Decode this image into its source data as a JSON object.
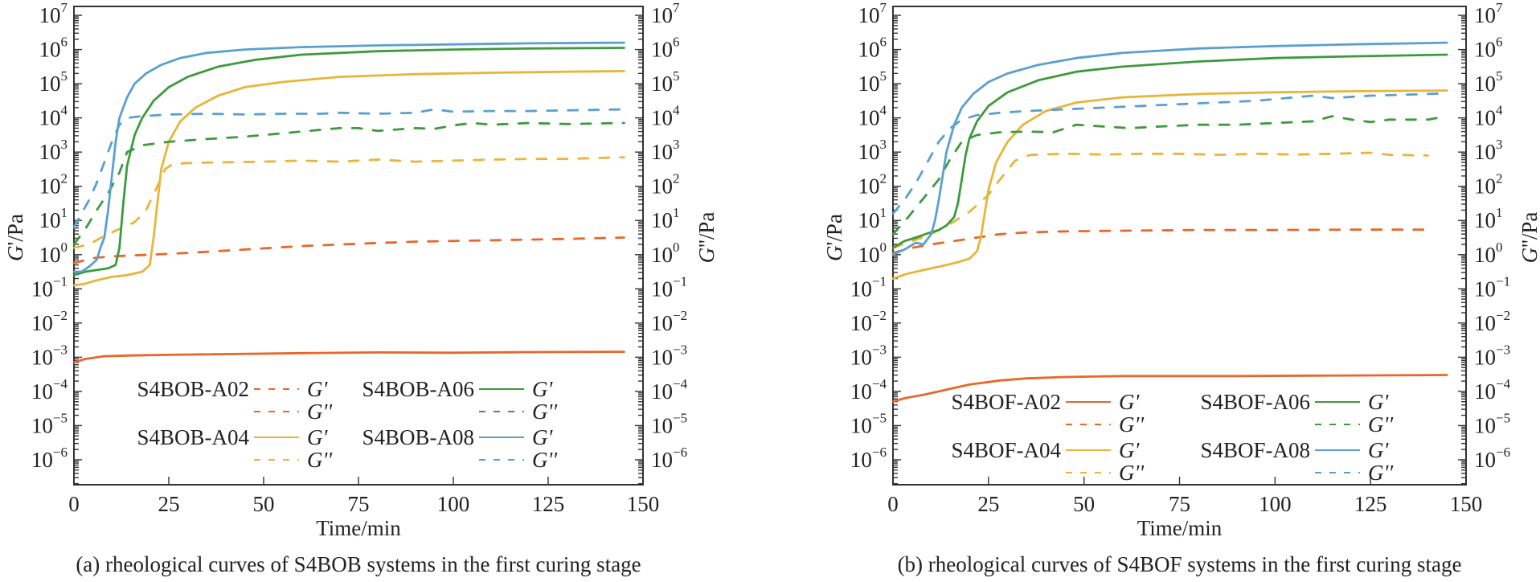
{
  "chart_data": [
    {
      "type": "line",
      "panel": "a",
      "caption": "(a) rheological curves of S4BOB systems in the first curing stage",
      "xlabel": "Time/min",
      "ylabel_left": "G'/Pa",
      "ylabel_right": "G''/Pa",
      "xlim": [
        0,
        150
      ],
      "ylim_log10": [
        -6.73,
        7.26
      ],
      "yscale": "log",
      "x_ticks": [
        0,
        25,
        50,
        75,
        100,
        125,
        150
      ],
      "y_ticks_exp": [
        7,
        6,
        5,
        4,
        3,
        2,
        1,
        0,
        -1,
        -2,
        -3,
        -4,
        -5,
        -6
      ],
      "grid": false,
      "legend_placement": "bottom-center",
      "legend": [
        {
          "sample": "S4BOB-A02",
          "Gp_label": "G'",
          "Gpp_label": "G''",
          "Gp_dashed": true
        },
        {
          "sample": "S4BOB-A04",
          "Gp_label": "G'",
          "Gpp_label": "G''",
          "Gp_dashed": false
        },
        {
          "sample": "S4BOB-A06",
          "Gp_label": "G'",
          "Gpp_label": "G''",
          "Gp_dashed": false
        },
        {
          "sample": "S4BOB-A08",
          "Gp_label": "G'",
          "Gpp_label": "G''",
          "Gp_dashed": false
        }
      ],
      "series": [
        {
          "name": "S4BOB-A02 G'",
          "color": "#e8672a",
          "dash": false,
          "x": [
            0,
            3,
            8,
            15,
            25,
            40,
            60,
            80,
            100,
            120,
            145
          ],
          "log10y": [
            -3.15,
            -3.05,
            -2.97,
            -2.95,
            -2.93,
            -2.91,
            -2.88,
            -2.86,
            -2.87,
            -2.85,
            -2.84
          ]
        },
        {
          "name": "S4BOB-A02 G''",
          "color": "#e8672a",
          "dash": true,
          "x": [
            0,
            5,
            10,
            20,
            30,
            45,
            60,
            75,
            90,
            110,
            130,
            145
          ],
          "log10y": [
            -0.25,
            -0.1,
            -0.05,
            0.0,
            0.05,
            0.15,
            0.25,
            0.32,
            0.38,
            0.42,
            0.46,
            0.5
          ]
        },
        {
          "name": "S4BOB-A04 G'",
          "color": "#e8b53a",
          "dash": false,
          "x": [
            0,
            3,
            6,
            10,
            14,
            18,
            20,
            21,
            22,
            23,
            25,
            28,
            32,
            38,
            45,
            55,
            70,
            90,
            110,
            130,
            145
          ],
          "log10y": [
            -0.9,
            -0.85,
            -0.75,
            -0.65,
            -0.6,
            -0.5,
            -0.3,
            0.5,
            1.5,
            2.5,
            3.3,
            3.9,
            4.3,
            4.65,
            4.9,
            5.05,
            5.2,
            5.28,
            5.32,
            5.35,
            5.37
          ]
        },
        {
          "name": "S4BOB-A04 G''",
          "color": "#e8b53a",
          "dash": true,
          "x": [
            0,
            4,
            8,
            12,
            16,
            19,
            22,
            24,
            26,
            30,
            40,
            50,
            60,
            70,
            80,
            90,
            100,
            110,
            120,
            130,
            145
          ],
          "log10y": [
            0.2,
            0.3,
            0.55,
            0.75,
            0.95,
            1.3,
            2.0,
            2.5,
            2.65,
            2.68,
            2.7,
            2.72,
            2.75,
            2.72,
            2.78,
            2.72,
            2.75,
            2.78,
            2.8,
            2.8,
            2.85
          ]
        },
        {
          "name": "S4BOB-A06 G'",
          "color": "#3d9a3d",
          "dash": false,
          "x": [
            0,
            3,
            6,
            9,
            11,
            12,
            13,
            14,
            16,
            18,
            21,
            25,
            30,
            38,
            48,
            60,
            80,
            100,
            120,
            145
          ],
          "log10y": [
            -0.6,
            -0.5,
            -0.45,
            -0.4,
            -0.3,
            0.2,
            1.5,
            2.6,
            3.5,
            4.0,
            4.5,
            4.9,
            5.2,
            5.5,
            5.7,
            5.85,
            5.95,
            6.0,
            6.03,
            6.05
          ]
        },
        {
          "name": "S4BOB-A06 G''",
          "color": "#3d9a3d",
          "dash": true,
          "x": [
            0,
            3,
            6,
            9,
            12,
            14,
            18,
            25,
            35,
            45,
            55,
            65,
            70,
            75,
            80,
            90,
            95,
            100,
            105,
            110,
            120,
            130,
            145
          ],
          "log10y": [
            0.3,
            0.75,
            1.3,
            1.8,
            2.4,
            3.0,
            3.2,
            3.3,
            3.38,
            3.45,
            3.55,
            3.65,
            3.7,
            3.7,
            3.62,
            3.7,
            3.68,
            3.78,
            3.85,
            3.8,
            3.85,
            3.82,
            3.85
          ]
        },
        {
          "name": "S4BOB-A08 G'",
          "color": "#5aa0cf",
          "dash": false,
          "x": [
            0,
            2,
            4,
            6,
            7,
            8,
            9,
            10,
            11,
            12,
            14,
            16,
            19,
            23,
            28,
            35,
            45,
            60,
            80,
            100,
            120,
            145
          ],
          "log10y": [
            -0.5,
            -0.5,
            -0.35,
            -0.15,
            0.2,
            0.5,
            1.3,
            2.3,
            3.3,
            4.0,
            4.6,
            5.0,
            5.3,
            5.55,
            5.75,
            5.9,
            6.0,
            6.07,
            6.12,
            6.15,
            6.18,
            6.2
          ]
        },
        {
          "name": "S4BOB-A08 G''",
          "color": "#5aa0cf",
          "dash": true,
          "x": [
            0,
            2,
            4,
            6,
            8,
            10,
            12,
            14,
            18,
            25,
            35,
            45,
            55,
            65,
            70,
            80,
            90,
            95,
            100,
            110,
            120,
            130,
            145
          ],
          "log10y": [
            0.8,
            1.2,
            1.6,
            2.1,
            2.7,
            3.3,
            3.8,
            4.0,
            4.05,
            4.1,
            4.12,
            4.1,
            4.12,
            4.12,
            4.15,
            4.12,
            4.15,
            4.25,
            4.18,
            4.2,
            4.2,
            4.22,
            4.25
          ]
        }
      ]
    },
    {
      "type": "line",
      "panel": "b",
      "caption": "(b) rheological curves of S4BOF systems in the first curing stage",
      "xlabel": "Time/min",
      "ylabel_left": "G'/Pa",
      "ylabel_right": "G''/Pa",
      "xlim": [
        0,
        150
      ],
      "ylim_log10": [
        -6.73,
        7.26
      ],
      "yscale": "log",
      "x_ticks": [
        0,
        25,
        50,
        75,
        100,
        125,
        150
      ],
      "y_ticks_exp": [
        7,
        6,
        5,
        4,
        3,
        2,
        1,
        0,
        -1,
        -2,
        -3,
        -4,
        -5,
        -6
      ],
      "grid": false,
      "legend_placement": "bottom-center",
      "legend": [
        {
          "sample": "S4BOF-A02",
          "Gp_label": "G'",
          "Gpp_label": "G''",
          "Gp_dashed": false
        },
        {
          "sample": "S4BOF-A04",
          "Gp_label": "G'",
          "Gpp_label": "G''",
          "Gp_dashed": false
        },
        {
          "sample": "S4BOF-A06",
          "Gp_label": "G'",
          "Gpp_label": "G''",
          "Gp_dashed": false
        },
        {
          "sample": "S4BOF-A08",
          "Gp_label": "G'",
          "Gpp_label": "G''",
          "Gp_dashed": false
        }
      ],
      "series": [
        {
          "name": "S4BOF-A02 G'",
          "color": "#e8672a",
          "dash": false,
          "x": [
            0,
            3,
            8,
            14,
            20,
            28,
            35,
            45,
            60,
            75,
            90,
            110,
            130,
            145
          ],
          "log10y": [
            -4.3,
            -4.2,
            -4.1,
            -3.95,
            -3.8,
            -3.68,
            -3.62,
            -3.58,
            -3.55,
            -3.55,
            -3.55,
            -3.54,
            -3.53,
            -3.52
          ]
        },
        {
          "name": "S4BOF-A02 G''",
          "color": "#e8672a",
          "dash": true,
          "x": [
            0,
            5,
            10,
            16,
            22,
            28,
            35,
            45,
            60,
            80,
            100,
            120,
            140
          ],
          "log10y": [
            0.05,
            0.2,
            0.3,
            0.4,
            0.5,
            0.6,
            0.65,
            0.68,
            0.7,
            0.72,
            0.72,
            0.73,
            0.73
          ]
        },
        {
          "name": "S4BOF-A04 G'",
          "color": "#e8b53a",
          "dash": false,
          "x": [
            0,
            4,
            8,
            12,
            16,
            20,
            22,
            23,
            24,
            25,
            27,
            30,
            34,
            40,
            48,
            60,
            80,
            100,
            120,
            145
          ],
          "log10y": [
            -0.7,
            -0.55,
            -0.45,
            -0.35,
            -0.25,
            -0.12,
            0.1,
            0.5,
            1.2,
            1.9,
            2.7,
            3.3,
            3.8,
            4.2,
            4.45,
            4.6,
            4.7,
            4.75,
            4.78,
            4.8
          ]
        },
        {
          "name": "S4BOF-A04 G''",
          "color": "#e8b53a",
          "dash": true,
          "x": [
            0,
            5,
            10,
            15,
            20,
            25,
            28,
            32,
            36,
            45,
            55,
            65,
            75,
            85,
            95,
            105,
            115,
            125,
            130,
            140
          ],
          "log10y": [
            0.2,
            0.4,
            0.6,
            0.9,
            1.25,
            1.75,
            2.2,
            2.75,
            2.92,
            2.95,
            2.93,
            2.95,
            2.95,
            2.92,
            2.95,
            2.93,
            2.95,
            2.98,
            2.92,
            2.9
          ]
        },
        {
          "name": "S4BOF-A06 G'",
          "color": "#3d9a3d",
          "dash": false,
          "x": [
            0,
            3,
            6,
            9,
            12,
            14,
            16,
            17,
            18,
            19,
            20,
            22,
            25,
            30,
            38,
            48,
            60,
            80,
            100,
            120,
            145
          ],
          "log10y": [
            0.2,
            0.4,
            0.5,
            0.62,
            0.72,
            0.85,
            1.1,
            1.5,
            2.2,
            2.9,
            3.4,
            3.9,
            4.35,
            4.75,
            5.1,
            5.35,
            5.5,
            5.65,
            5.75,
            5.8,
            5.85
          ]
        },
        {
          "name": "S4BOF-A06 G''",
          "color": "#3d9a3d",
          "dash": true,
          "x": [
            0,
            4,
            8,
            12,
            15,
            18,
            22,
            28,
            35,
            42,
            48,
            55,
            62,
            70,
            80,
            90,
            100,
            110,
            115,
            120,
            125,
            130,
            140,
            145
          ],
          "log10y": [
            0.6,
            1.1,
            1.65,
            2.2,
            2.8,
            3.3,
            3.5,
            3.58,
            3.6,
            3.58,
            3.8,
            3.75,
            3.7,
            3.75,
            3.8,
            3.8,
            3.85,
            3.9,
            4.05,
            3.95,
            3.88,
            3.95,
            3.95,
            4.05
          ]
        },
        {
          "name": "S4BOF-A08 G'",
          "color": "#5aa0cf",
          "dash": false,
          "x": [
            0,
            3,
            6,
            8,
            10,
            11,
            12,
            13,
            14,
            16,
            18,
            21,
            25,
            30,
            38,
            48,
            60,
            80,
            100,
            120,
            145
          ],
          "log10y": [
            0.0,
            0.15,
            0.35,
            0.3,
            0.6,
            1.0,
            1.6,
            2.3,
            3.0,
            3.8,
            4.3,
            4.7,
            5.05,
            5.3,
            5.55,
            5.75,
            5.9,
            6.03,
            6.1,
            6.15,
            6.2
          ]
        },
        {
          "name": "S4BOF-A08 G''",
          "color": "#5aa0cf",
          "dash": true,
          "x": [
            0,
            3,
            6,
            9,
            12,
            15,
            18,
            22,
            28,
            35,
            45,
            55,
            65,
            75,
            85,
            95,
            105,
            110,
            115,
            125,
            135,
            145
          ],
          "log10y": [
            1.2,
            1.6,
            2.1,
            2.7,
            3.3,
            3.7,
            3.95,
            4.08,
            4.15,
            4.2,
            4.25,
            4.3,
            4.35,
            4.4,
            4.45,
            4.5,
            4.6,
            4.65,
            4.58,
            4.65,
            4.68,
            4.72
          ]
        }
      ]
    }
  ]
}
